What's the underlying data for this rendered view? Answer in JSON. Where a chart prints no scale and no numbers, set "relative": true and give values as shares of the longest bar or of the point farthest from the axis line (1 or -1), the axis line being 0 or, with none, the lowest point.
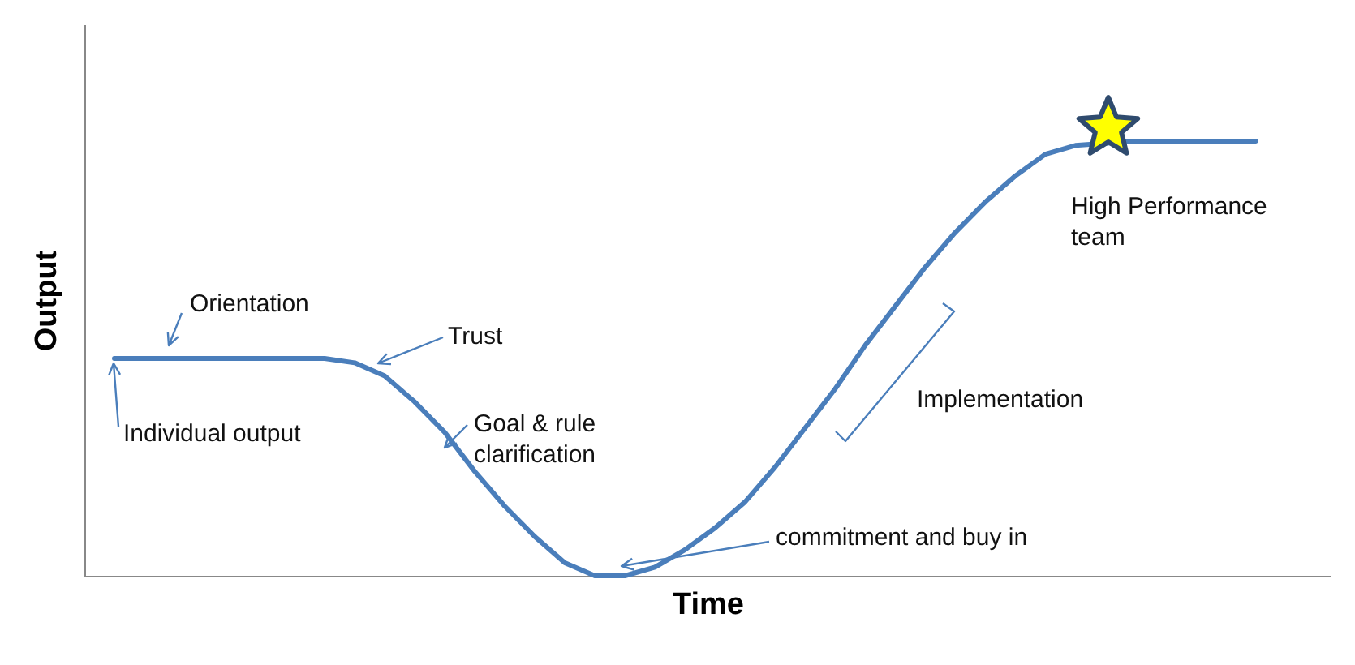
{
  "chart_data": {
    "type": "line",
    "relative": true,
    "xlabel": "Time",
    "ylabel": "Output",
    "categories": [
      null,
      null,
      null,
      null,
      null,
      null,
      null,
      null,
      null,
      null,
      null,
      null,
      null,
      null,
      null,
      null,
      null,
      null,
      null,
      null,
      null,
      null,
      null,
      null,
      null,
      null,
      null,
      null,
      null,
      null,
      null,
      null,
      null,
      null,
      null,
      null,
      null,
      null,
      null
    ],
    "series": [
      {
        "color": "#4a7ebb",
        "values": [
          0.5,
          0.5,
          0.5,
          0.5,
          0.5,
          0.5,
          0.5,
          0.5,
          0.49,
          0.46,
          0.4,
          0.33,
          0.24,
          0.16,
          0.09,
          0.03,
          0.0,
          0.0,
          0.02,
          0.06,
          0.11,
          0.17,
          0.25,
          0.34,
          0.43,
          0.53,
          0.62,
          0.71,
          0.79,
          0.86,
          0.92,
          0.97,
          0.99,
          null,
          1,
          1,
          1,
          1,
          1
        ]
      }
    ],
    "annotations": [
      "Orientation",
      "Trust",
      "Individual output",
      "Goal & rule clarification",
      "commitment and buy in",
      "Implementation",
      "High Performance team"
    ]
  }
}
